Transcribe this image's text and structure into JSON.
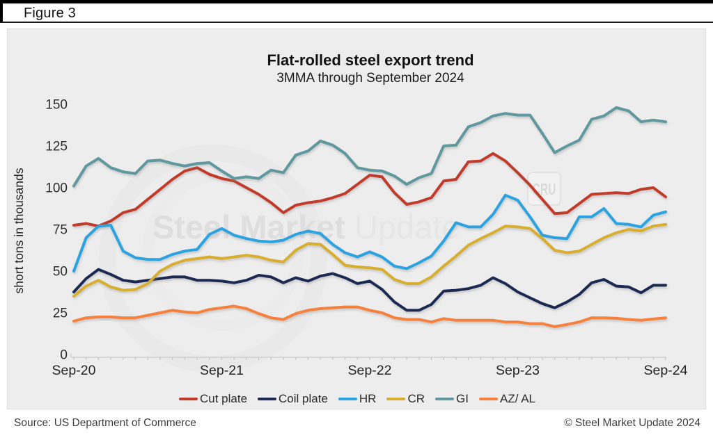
{
  "header": {
    "figure_label": "Figure 3"
  },
  "chart": {
    "title": "Flat-rolled steel export trend",
    "subtitle": "3MMA through September 2024",
    "ylabel": "short tons in thousands",
    "watermark_bold": "Steel Market ",
    "watermark_light": "Update",
    "cru_label": "CRU"
  },
  "chart_data": {
    "type": "line",
    "title": "Flat-rolled steel export trend",
    "subtitle": "3MMA through September 2024",
    "ylabel": "short tons in thousands",
    "ylim": [
      0,
      150
    ],
    "yticks": [
      0,
      25,
      50,
      75,
      100,
      125,
      150
    ],
    "grid": false,
    "legend_position": "bottom",
    "x_unit": "months from Sep-2020 to Sep-2024, monthly points",
    "n_points": 49,
    "x_tick_labels": [
      {
        "label": "Sep-20",
        "month": 0
      },
      {
        "label": "Sep-21",
        "month": 12
      },
      {
        "label": "Sep-22",
        "month": 24
      },
      {
        "label": "Sep-23",
        "month": 36
      },
      {
        "label": "Sep-24",
        "month": 48
      }
    ],
    "series": [
      {
        "name": "Cut plate",
        "color": "#c13a2a",
        "values": [
          77.5,
          78.5,
          77,
          80,
          85,
          87,
          93,
          99,
          105,
          110,
          112,
          108,
          105.5,
          104,
          100,
          96,
          91,
          85,
          89.5,
          91,
          92,
          94,
          96.5,
          102,
          107.5,
          106.5,
          97,
          90,
          91.5,
          94,
          104,
          105,
          115.5,
          116,
          120.5,
          116,
          109,
          101.5,
          93,
          84.5,
          85,
          90.5,
          96,
          96.5,
          97,
          96.5,
          99,
          100,
          94.5
        ]
      },
      {
        "name": "Coil plate",
        "color": "#1e2a52",
        "values": [
          37.5,
          45.5,
          51,
          48,
          44.5,
          43.5,
          44.5,
          45.5,
          46.5,
          46.5,
          44.5,
          44.5,
          44,
          43,
          44.5,
          47.5,
          46.5,
          43,
          46,
          44,
          47,
          48.5,
          46,
          42.5,
          44,
          39,
          31.5,
          26.5,
          26.5,
          30,
          38,
          38.5,
          39.5,
          41.5,
          46,
          42.5,
          37.5,
          34,
          30.5,
          28,
          31.5,
          36,
          43,
          45,
          41,
          40.5,
          37,
          41.5,
          41.5
        ]
      },
      {
        "name": "HR",
        "color": "#2aa3e0",
        "values": [
          50,
          70,
          77,
          77.5,
          62,
          58,
          57,
          57,
          60,
          62,
          63,
          72,
          75.5,
          71.5,
          69.5,
          68,
          67.5,
          68.5,
          72,
          74,
          72.5,
          66,
          61,
          58.5,
          61.5,
          58.5,
          53,
          51.5,
          55,
          59,
          68,
          79,
          76.5,
          76.5,
          84,
          95.5,
          92.5,
          82.5,
          71.5,
          70,
          69.5,
          82.5,
          82.5,
          87.5,
          78.5,
          78,
          76.5,
          83.5,
          85.5
        ]
      },
      {
        "name": "CR",
        "color": "#d8ae2e",
        "values": [
          35,
          41,
          44.5,
          40.5,
          38.5,
          39,
          42.5,
          50,
          54,
          56.5,
          57.5,
          58.5,
          57.5,
          58.5,
          59.5,
          58.5,
          56.5,
          55.5,
          62.5,
          66.5,
          66,
          60,
          53.5,
          52.5,
          52,
          51,
          45,
          42.5,
          42.5,
          46.5,
          53,
          59,
          65.5,
          69.5,
          73,
          77,
          76.5,
          75.5,
          69.5,
          62.5,
          61,
          62,
          66,
          70,
          73,
          75,
          74,
          77,
          78
        ]
      },
      {
        "name": "GI",
        "color": "#61989f",
        "values": [
          101,
          113,
          117.5,
          112,
          109.5,
          108.5,
          116,
          116.5,
          114.5,
          113,
          114.5,
          115,
          110,
          105.5,
          106.5,
          105.5,
          110.5,
          109,
          119.5,
          122,
          128,
          125.5,
          120.5,
          112,
          110.5,
          110,
          107,
          102,
          106,
          108.5,
          125,
          125.5,
          136.5,
          139,
          143,
          144.5,
          143.5,
          143.5,
          132.5,
          121,
          125,
          128.5,
          141,
          143,
          148,
          146,
          139.5,
          140.5,
          139.5
        ]
      },
      {
        "name": "AZ/ AL",
        "color": "#f5813c",
        "values": [
          20,
          22,
          22.5,
          22.5,
          22,
          22,
          23.5,
          25,
          26.5,
          25.5,
          25,
          27,
          28,
          29,
          27.5,
          24.5,
          22,
          21,
          24.5,
          26.5,
          27.5,
          28,
          28.5,
          28.5,
          26.5,
          25,
          22,
          21,
          21,
          19.5,
          21.5,
          20.5,
          20.5,
          20.5,
          20.5,
          19.5,
          19.5,
          18.5,
          18.5,
          16.7,
          18,
          19.5,
          22,
          22,
          21.7,
          21,
          20.5,
          21.3,
          22
        ]
      }
    ]
  },
  "legend": {
    "items": [
      {
        "label": "Cut plate",
        "color": "#c13a2a"
      },
      {
        "label": "Coil plate",
        "color": "#1e2a52"
      },
      {
        "label": "HR",
        "color": "#2aa3e0"
      },
      {
        "label": "CR",
        "color": "#d8ae2e"
      },
      {
        "label": "GI",
        "color": "#61989f"
      },
      {
        "label": "AZ/ AL",
        "color": "#f5813c"
      }
    ]
  },
  "footer": {
    "source": "Source: US Department of Commerce",
    "copyright": "© Steel Market Update 2024"
  }
}
